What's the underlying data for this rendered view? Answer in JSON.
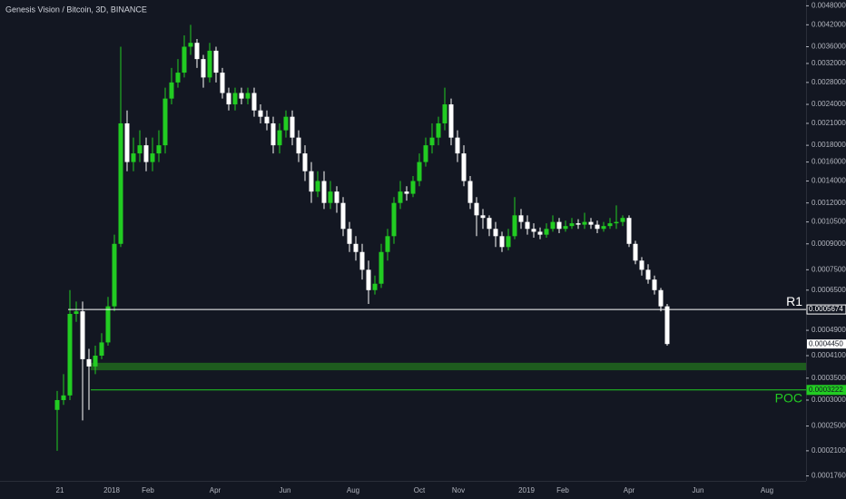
{
  "chart_data": {
    "type": "candlestick",
    "title": "Genesis Vision / Bitcoin, 3D, BINANCE",
    "log_scale": true,
    "up_color": "#22cc22",
    "down_color": "#ffffff",
    "ylim": [
      0.00017,
      0.005
    ],
    "yticks": [
      {
        "value": 0.0048,
        "label": "0.0048000"
      },
      {
        "value": 0.0042,
        "label": "0.0042000"
      },
      {
        "value": 0.0036,
        "label": "0.0036000"
      },
      {
        "value": 0.0032,
        "label": "0.0032000"
      },
      {
        "value": 0.0028,
        "label": "0.0028000"
      },
      {
        "value": 0.0024,
        "label": "0.0024000"
      },
      {
        "value": 0.0021,
        "label": "0.0021000"
      },
      {
        "value": 0.0018,
        "label": "0.0018000"
      },
      {
        "value": 0.0016,
        "label": "0.0016000"
      },
      {
        "value": 0.0014,
        "label": "0.0014000"
      },
      {
        "value": 0.0012,
        "label": "0.0012000"
      },
      {
        "value": 0.00105,
        "label": "0.0010500"
      },
      {
        "value": 0.0009,
        "label": "0.0009000"
      },
      {
        "value": 0.00075,
        "label": "0.0007500"
      },
      {
        "value": 0.00065,
        "label": "0.0006500"
      },
      {
        "value": 0.00049,
        "label": "0.0004900"
      },
      {
        "value": 0.00041,
        "label": "0.0004100"
      },
      {
        "value": 0.00035,
        "label": "0.0003500"
      },
      {
        "value": 0.0003,
        "label": "0.0003000"
      },
      {
        "value": 0.00025,
        "label": "0.0002500"
      },
      {
        "value": 0.00021,
        "label": "0.0002100"
      },
      {
        "value": 0.000176,
        "label": "0.0001760"
      }
    ],
    "xtick_labels": [
      "21",
      "2018",
      "Feb",
      "Apr",
      "Jun",
      "Aug",
      "Oct",
      "Nov",
      "2019",
      "Feb",
      "Apr",
      "Jun",
      "Aug"
    ],
    "levels": [
      {
        "name": "R1",
        "value": 0.0005674,
        "label": "0.0005674",
        "color": "#ffffff"
      },
      {
        "name": "POC",
        "value": 0.0003222,
        "label": "0.0003222",
        "color": "#22cc22"
      }
    ],
    "last_price": {
      "value": 0.000445,
      "label": "0.0004450"
    },
    "zone": {
      "from": 0.00037,
      "to": 0.00039,
      "color": "#1e5c1e"
    },
    "candles": [
      [
        0.00028,
        0.00032,
        0.00021,
        0.0003
      ],
      [
        0.0003,
        0.00036,
        0.00029,
        0.00031
      ],
      [
        0.00031,
        0.00065,
        0.0003,
        0.00055
      ],
      [
        0.00055,
        0.0006,
        0.00052,
        0.00056
      ],
      [
        0.00056,
        0.0006,
        0.00026,
        0.0004
      ],
      [
        0.0004,
        0.00043,
        0.00028,
        0.00038
      ],
      [
        0.00038,
        0.00044,
        0.00036,
        0.00041
      ],
      [
        0.00041,
        0.00048,
        0.0004,
        0.00045
      ],
      [
        0.00045,
        0.00062,
        0.00044,
        0.00058
      ],
      [
        0.00058,
        0.00096,
        0.00056,
        0.0009
      ],
      [
        0.0009,
        0.0036,
        0.00088,
        0.0021
      ],
      [
        0.0021,
        0.0023,
        0.0015,
        0.0016
      ],
      [
        0.0016,
        0.0019,
        0.0015,
        0.0017
      ],
      [
        0.0017,
        0.002,
        0.0016,
        0.0018
      ],
      [
        0.0018,
        0.0019,
        0.0015,
        0.0016
      ],
      [
        0.0016,
        0.0019,
        0.0015,
        0.0017
      ],
      [
        0.0017,
        0.002,
        0.0016,
        0.0018
      ],
      [
        0.0018,
        0.0027,
        0.0017,
        0.0025
      ],
      [
        0.0025,
        0.0031,
        0.0024,
        0.0028
      ],
      [
        0.0028,
        0.0033,
        0.0027,
        0.003
      ],
      [
        0.003,
        0.0039,
        0.0029,
        0.0036
      ],
      [
        0.0036,
        0.0042,
        0.0034,
        0.0037
      ],
      [
        0.0037,
        0.0038,
        0.0031,
        0.0033
      ],
      [
        0.0033,
        0.0034,
        0.0027,
        0.0029
      ],
      [
        0.0029,
        0.0037,
        0.0028,
        0.0035
      ],
      [
        0.0035,
        0.0036,
        0.0028,
        0.003
      ],
      [
        0.003,
        0.0031,
        0.0025,
        0.0026
      ],
      [
        0.0026,
        0.0027,
        0.0023,
        0.0024
      ],
      [
        0.0024,
        0.0027,
        0.0023,
        0.0026
      ],
      [
        0.0026,
        0.0027,
        0.0024,
        0.0025
      ],
      [
        0.0025,
        0.0027,
        0.0024,
        0.0026
      ],
      [
        0.0026,
        0.0027,
        0.0022,
        0.0023
      ],
      [
        0.0023,
        0.0024,
        0.0021,
        0.0022
      ],
      [
        0.0022,
        0.0023,
        0.002,
        0.0021
      ],
      [
        0.0021,
        0.0022,
        0.0017,
        0.0018
      ],
      [
        0.0018,
        0.0021,
        0.0017,
        0.002
      ],
      [
        0.002,
        0.0023,
        0.0019,
        0.0022
      ],
      [
        0.0022,
        0.0023,
        0.0018,
        0.0019
      ],
      [
        0.0019,
        0.002,
        0.0016,
        0.0017
      ],
      [
        0.0017,
        0.0018,
        0.0014,
        0.0015
      ],
      [
        0.0015,
        0.0016,
        0.0012,
        0.0013
      ],
      [
        0.0013,
        0.0015,
        0.00125,
        0.0014
      ],
      [
        0.0014,
        0.0015,
        0.00115,
        0.0012
      ],
      [
        0.0012,
        0.0014,
        0.00115,
        0.0013
      ],
      [
        0.0013,
        0.00135,
        0.00112,
        0.0012
      ],
      [
        0.0012,
        0.00125,
        0.00095,
        0.001
      ],
      [
        0.001,
        0.00105,
        0.00085,
        0.0009
      ],
      [
        0.0009,
        0.00095,
        0.0008,
        0.00085
      ],
      [
        0.00085,
        0.0009,
        0.0007,
        0.00075
      ],
      [
        0.00075,
        0.0008,
        0.00059,
        0.00065
      ],
      [
        0.00065,
        0.00072,
        0.00063,
        0.00068
      ],
      [
        0.00068,
        0.0009,
        0.00066,
        0.00085
      ],
      [
        0.00085,
        0.001,
        0.0008,
        0.00095
      ],
      [
        0.00095,
        0.00125,
        0.0009,
        0.0012
      ],
      [
        0.0012,
        0.0014,
        0.00115,
        0.0013
      ],
      [
        0.0013,
        0.00135,
        0.00122,
        0.00128
      ],
      [
        0.00128,
        0.00145,
        0.00125,
        0.0014
      ],
      [
        0.0014,
        0.0017,
        0.00135,
        0.0016
      ],
      [
        0.0016,
        0.0019,
        0.00155,
        0.0018
      ],
      [
        0.0018,
        0.0021,
        0.0017,
        0.0019
      ],
      [
        0.0019,
        0.0022,
        0.0018,
        0.0021
      ],
      [
        0.0021,
        0.0027,
        0.002,
        0.0024
      ],
      [
        0.0024,
        0.0025,
        0.0018,
        0.0019
      ],
      [
        0.0019,
        0.002,
        0.0016,
        0.0017
      ],
      [
        0.0017,
        0.0018,
        0.00135,
        0.0014
      ],
      [
        0.0014,
        0.00145,
        0.00115,
        0.0012
      ],
      [
        0.0012,
        0.00125,
        0.00095,
        0.0011
      ],
      [
        0.0011,
        0.00115,
        0.001,
        0.00108
      ],
      [
        0.00108,
        0.0011,
        0.00095,
        0.001
      ],
      [
        0.001,
        0.00105,
        0.00088,
        0.00095
      ],
      [
        0.00095,
        0.00098,
        0.00085,
        0.00088
      ],
      [
        0.00088,
        0.001,
        0.00086,
        0.00095
      ],
      [
        0.00095,
        0.00125,
        0.00093,
        0.0011
      ],
      [
        0.0011,
        0.00115,
        0.001,
        0.00105
      ],
      [
        0.00105,
        0.0011,
        0.00096,
        0.001
      ],
      [
        0.001,
        0.00104,
        0.00094,
        0.00098
      ],
      [
        0.00098,
        0.00101,
        0.00093,
        0.00096
      ],
      [
        0.00096,
        0.00104,
        0.00094,
        0.001
      ],
      [
        0.001,
        0.0011,
        0.00098,
        0.00105
      ],
      [
        0.00105,
        0.00108,
        0.00097,
        0.001
      ],
      [
        0.001,
        0.00106,
        0.00098,
        0.00102
      ],
      [
        0.00102,
        0.00108,
        0.001,
        0.00104
      ],
      [
        0.00104,
        0.00107,
        0.001,
        0.00103
      ],
      [
        0.00103,
        0.00112,
        0.001,
        0.00105
      ],
      [
        0.00105,
        0.00108,
        0.001,
        0.00103
      ],
      [
        0.00103,
        0.00106,
        0.00097,
        0.001
      ],
      [
        0.001,
        0.00105,
        0.00098,
        0.00102
      ],
      [
        0.00102,
        0.00108,
        0.001,
        0.00104
      ],
      [
        0.00104,
        0.00118,
        0.001,
        0.00105
      ],
      [
        0.00105,
        0.0011,
        0.00102,
        0.00108
      ],
      [
        0.00108,
        0.0011,
        0.00088,
        0.0009
      ],
      [
        0.0009,
        0.00092,
        0.00078,
        0.0008
      ],
      [
        0.0008,
        0.00082,
        0.00072,
        0.00075
      ],
      [
        0.00075,
        0.00078,
        0.00068,
        0.0007
      ],
      [
        0.0007,
        0.00072,
        0.00063,
        0.00065
      ],
      [
        0.00065,
        0.00066,
        0.00056,
        0.00058
      ],
      [
        0.00058,
        0.00059,
        0.00044,
        0.000445
      ]
    ]
  }
}
